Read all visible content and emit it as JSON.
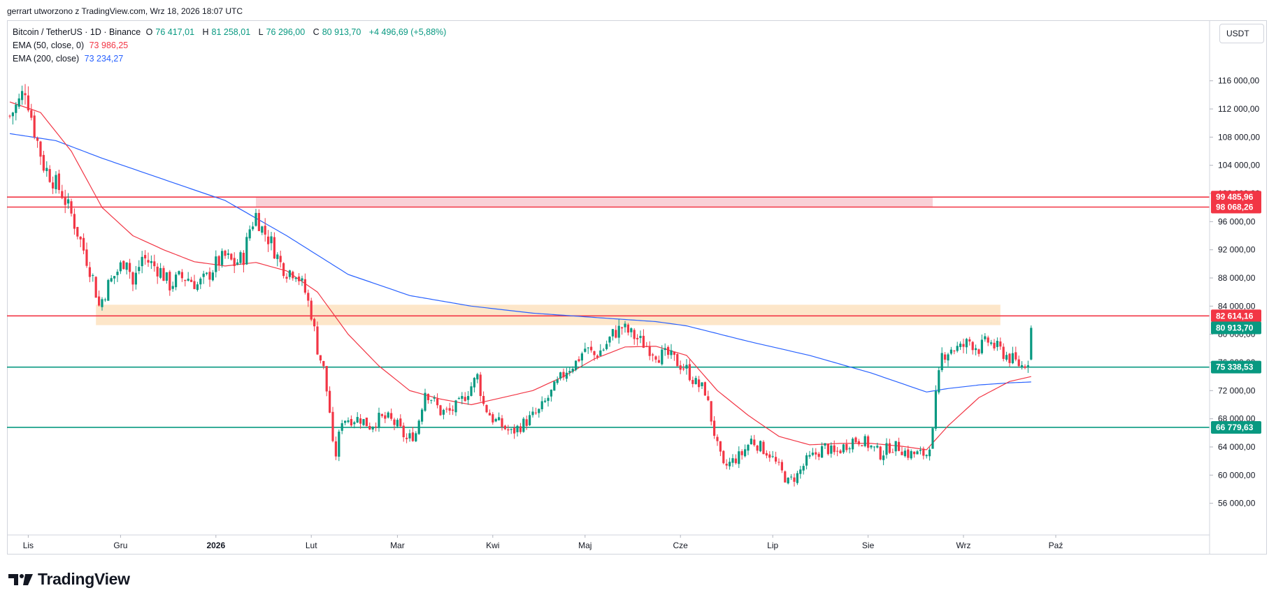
{
  "header": {
    "text": "gerrart utworzono z TradingView.com, Wrz 18, 2026 18:07 UTC"
  },
  "legend": {
    "symbol": "Bitcoin / TetherUS · 1D · Binance",
    "open_label": "O",
    "open": "76 417,01",
    "high_label": "H",
    "high": "81 258,01",
    "low_label": "L",
    "low": "76 296,00",
    "close_label": "C",
    "close": "80 913,70",
    "change": "+4 496,69 (+5,88%)",
    "ema50_label": "EMA (50, close, 0)",
    "ema50_value": "73 986,25",
    "ema200_label": "EMA (200, close)",
    "ema200_value": "73 234,27"
  },
  "currency": "USDT",
  "brand": "TradingView",
  "colors": {
    "up": "#089981",
    "down": "#f23645",
    "ema50": "#f23645",
    "ema200": "#2962ff",
    "resistance": "#f23645",
    "support": "#089981",
    "supply_zone": "#f8c9d0",
    "demand_zone": "#fde3c3",
    "last_price": "#089981"
  },
  "chart_data": {
    "type": "candlestick",
    "title": "Bitcoin / TetherUS · 1D · Binance",
    "xlabel": "",
    "ylabel": "",
    "ylim": [
      51500,
      124500
    ],
    "y_ticks": [
      56000,
      60000,
      64000,
      68000,
      72000,
      76000,
      80000,
      84000,
      88000,
      92000,
      96000,
      100000,
      104000,
      108000,
      112000,
      116000
    ],
    "y_tick_labels": [
      "56 000,00",
      "60 000,00",
      "64 000,00",
      "68 000,00",
      "72 000,00",
      "76 000,00",
      "80 000,00",
      "84 000,00",
      "88 000,00",
      "92 000,00",
      "96 000,00",
      "100 000,00",
      "104 000,00",
      "108 000,00",
      "112 000,00",
      "116 000,00"
    ],
    "x_month_labels": [
      "Lis",
      "Gru",
      "2026",
      "Lut",
      "Mar",
      "Kwi",
      "Maj",
      "Cze",
      "Lip",
      "Sie",
      "Wrz",
      "Paź"
    ],
    "x_month_days": [
      6,
      36,
      67,
      98,
      126,
      157,
      187,
      218,
      248,
      279,
      310,
      340
    ],
    "days_total": 365,
    "first_candle_day": 0,
    "grid": false,
    "price_trajectory_points": [
      [
        0,
        111000
      ],
      [
        3,
        113000
      ],
      [
        5,
        115000
      ],
      [
        8,
        109000
      ],
      [
        11,
        104000
      ],
      [
        14,
        102000
      ],
      [
        17,
        100000
      ],
      [
        20,
        97000
      ],
      [
        24,
        92000
      ],
      [
        27,
        88000
      ],
      [
        29,
        84000
      ],
      [
        32,
        87000
      ],
      [
        35,
        89000
      ],
      [
        38,
        91000
      ],
      [
        40,
        87000
      ],
      [
        43,
        91000
      ],
      [
        46,
        90000
      ],
      [
        49,
        89000
      ],
      [
        52,
        87000
      ],
      [
        55,
        88000
      ],
      [
        58,
        88000
      ],
      [
        61,
        87000
      ],
      [
        64,
        88000
      ],
      [
        67,
        90000
      ],
      [
        70,
        91000
      ],
      [
        73,
        90000
      ],
      [
        76,
        91000
      ],
      [
        78,
        95000
      ],
      [
        80,
        97000
      ],
      [
        82,
        95000
      ],
      [
        85,
        93000
      ],
      [
        88,
        90000
      ],
      [
        90,
        89000
      ],
      [
        93,
        89000
      ],
      [
        96,
        86000
      ],
      [
        98,
        83000
      ],
      [
        100,
        78000
      ],
      [
        102,
        75000
      ],
      [
        104,
        69000
      ],
      [
        105,
        64000
      ],
      [
        106,
        63000
      ],
      [
        108,
        68000
      ],
      [
        111,
        68000
      ],
      [
        114,
        68000
      ],
      [
        117,
        67000
      ],
      [
        120,
        68000
      ],
      [
        123,
        68000
      ],
      [
        126,
        67000
      ],
      [
        129,
        65000
      ],
      [
        132,
        66000
      ],
      [
        135,
        72000
      ],
      [
        137,
        71000
      ],
      [
        140,
        69000
      ],
      [
        143,
        69000
      ],
      [
        146,
        70000
      ],
      [
        149,
        72000
      ],
      [
        152,
        74000
      ],
      [
        154,
        70000
      ],
      [
        157,
        68000
      ],
      [
        160,
        67000
      ],
      [
        163,
        66000
      ],
      [
        166,
        67000
      ],
      [
        169,
        68000
      ],
      [
        172,
        69000
      ],
      [
        175,
        71000
      ],
      [
        178,
        73000
      ],
      [
        181,
        75000
      ],
      [
        184,
        76000
      ],
      [
        187,
        78000
      ],
      [
        190,
        77000
      ],
      [
        193,
        78000
      ],
      [
        196,
        80000
      ],
      [
        199,
        81000
      ],
      [
        202,
        80000
      ],
      [
        205,
        79000
      ],
      [
        208,
        78000
      ],
      [
        211,
        77000
      ],
      [
        214,
        77000
      ],
      [
        217,
        76000
      ],
      [
        220,
        75000
      ],
      [
        223,
        73000
      ],
      [
        226,
        72000
      ],
      [
        228,
        68000
      ],
      [
        230,
        64000
      ],
      [
        232,
        61000
      ],
      [
        235,
        62000
      ],
      [
        238,
        63000
      ],
      [
        241,
        65000
      ],
      [
        244,
        64000
      ],
      [
        247,
        63000
      ],
      [
        250,
        61000
      ],
      [
        253,
        59000
      ],
      [
        256,
        60000
      ],
      [
        259,
        62000
      ],
      [
        262,
        63000
      ],
      [
        265,
        64000
      ],
      [
        268,
        63000
      ],
      [
        271,
        64000
      ],
      [
        274,
        65000
      ],
      [
        277,
        65000
      ],
      [
        280,
        64000
      ],
      [
        283,
        63000
      ],
      [
        286,
        64000
      ],
      [
        289,
        64000
      ],
      [
        292,
        63000
      ],
      [
        295,
        63000
      ],
      [
        298,
        63000
      ],
      [
        300,
        66000
      ],
      [
        301,
        71000
      ],
      [
        302,
        74000
      ],
      [
        303,
        77000
      ],
      [
        306,
        78000
      ],
      [
        309,
        78000
      ],
      [
        312,
        79000
      ],
      [
        315,
        78000
      ],
      [
        318,
        79000
      ],
      [
        321,
        78000
      ],
      [
        324,
        77000
      ],
      [
        327,
        76000
      ],
      [
        329,
        75500
      ],
      [
        331,
        76400
      ],
      [
        332,
        80913
      ]
    ],
    "ema50_points": [
      [
        0,
        113000
      ],
      [
        10,
        111500
      ],
      [
        20,
        106000
      ],
      [
        30,
        98000
      ],
      [
        40,
        94000
      ],
      [
        50,
        92000
      ],
      [
        60,
        90300
      ],
      [
        70,
        89700
      ],
      [
        80,
        90200
      ],
      [
        90,
        89000
      ],
      [
        100,
        86000
      ],
      [
        110,
        80000
      ],
      [
        120,
        75500
      ],
      [
        130,
        72000
      ],
      [
        140,
        70800
      ],
      [
        150,
        70000
      ],
      [
        160,
        71000
      ],
      [
        170,
        72000
      ],
      [
        180,
        74000
      ],
      [
        190,
        76500
      ],
      [
        200,
        78200
      ],
      [
        210,
        78300
      ],
      [
        220,
        77000
      ],
      [
        230,
        72000
      ],
      [
        240,
        68500
      ],
      [
        250,
        65500
      ],
      [
        260,
        64300
      ],
      [
        270,
        64500
      ],
      [
        280,
        64500
      ],
      [
        290,
        64100
      ],
      [
        298,
        63600
      ],
      [
        305,
        67000
      ],
      [
        315,
        71000
      ],
      [
        325,
        73300
      ],
      [
        332,
        74000
      ]
    ],
    "ema200_points": [
      [
        0,
        108500
      ],
      [
        15,
        107500
      ],
      [
        30,
        105000
      ],
      [
        50,
        102000
      ],
      [
        70,
        99000
      ],
      [
        90,
        94000
      ],
      [
        110,
        88500
      ],
      [
        130,
        85500
      ],
      [
        150,
        84000
      ],
      [
        170,
        83000
      ],
      [
        190,
        82400
      ],
      [
        210,
        81800
      ],
      [
        220,
        81200
      ],
      [
        240,
        79000
      ],
      [
        260,
        77000
      ],
      [
        280,
        74500
      ],
      [
        290,
        73000
      ],
      [
        298,
        71800
      ],
      [
        305,
        72300
      ],
      [
        315,
        72800
      ],
      [
        325,
        73100
      ],
      [
        332,
        73234
      ]
    ],
    "horizontal_levels": [
      {
        "price": 99485.96,
        "label": "99 485,96",
        "kind": "resistance"
      },
      {
        "price": 98068.26,
        "label": "98 068,26",
        "kind": "resistance"
      },
      {
        "price": 82614.16,
        "label": "82 614,16",
        "kind": "resistance"
      },
      {
        "price": 75338.53,
        "label": "75 338,53",
        "kind": "support"
      },
      {
        "price": 66779.63,
        "label": "66 779,63",
        "kind": "support"
      }
    ],
    "last_price": {
      "price": 80913.7,
      "label": "80 913,70"
    },
    "zones": [
      {
        "kind": "supply",
        "from_day": 80,
        "to_day": 300,
        "low": 98068.26,
        "high": 99485.96
      },
      {
        "kind": "demand",
        "from_day": 28,
        "to_day": 322,
        "low": 81300,
        "high": 84200
      }
    ]
  }
}
